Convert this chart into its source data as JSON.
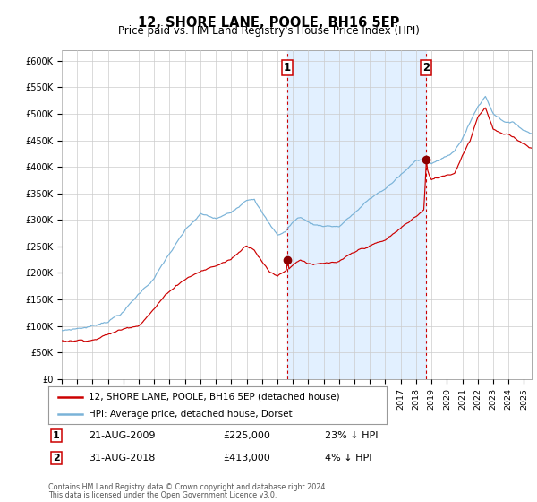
{
  "title": "12, SHORE LANE, POOLE, BH16 5EP",
  "subtitle": "Price paid vs. HM Land Registry's House Price Index (HPI)",
  "legend_line1": "12, SHORE LANE, POOLE, BH16 5EP (detached house)",
  "legend_line2": "HPI: Average price, detached house, Dorset",
  "transaction1_date": "21-AUG-2009",
  "transaction1_price": 225000,
  "transaction1_label": "23% ↓ HPI",
  "transaction2_date": "31-AUG-2018",
  "transaction2_price": 413000,
  "transaction2_label": "4% ↓ HPI",
  "footer1": "Contains HM Land Registry data © Crown copyright and database right 2024.",
  "footer2": "This data is licensed under the Open Government Licence v3.0.",
  "hpi_color": "#7ab3d8",
  "price_color": "#cc0000",
  "marker_color": "#8b0000",
  "vline_color": "#cc0000",
  "shade_color": "#ddeeff",
  "background_color": "#ffffff",
  "grid_color": "#cccccc",
  "ylim_max": 620000,
  "xlim_start": 1995.0,
  "xlim_end": 2025.5,
  "transaction1_x": 2009.64,
  "transaction2_x": 2018.66
}
